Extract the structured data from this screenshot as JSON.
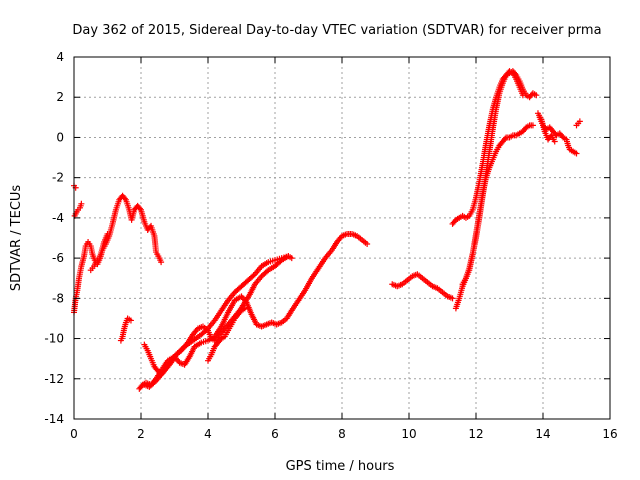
{
  "chart_data": {
    "type": "scatter",
    "title": "Day 362 of 2015, Sidereal Day-to-day VTEC variation (SDTVAR) for receiver prma",
    "xlabel": "GPS time / hours",
    "ylabel": "SDTVAR / TECUs",
    "xlim": [
      0,
      16
    ],
    "ylim": [
      -14,
      4
    ],
    "xticks": [
      0,
      2,
      4,
      6,
      8,
      10,
      12,
      14,
      16
    ],
    "yticks": [
      -14,
      -12,
      -10,
      -8,
      -6,
      -4,
      -2,
      0,
      2,
      4
    ],
    "grid": true,
    "legend": "none",
    "marker": "+",
    "series": [
      {
        "name": "prma",
        "color": "#ff0000",
        "segments": [
          [
            [
              0.0,
              -8.7
            ],
            [
              0.05,
              -8.0
            ],
            [
              0.1,
              -7.6
            ],
            [
              0.15,
              -7.0
            ],
            [
              0.22,
              -6.4
            ],
            [
              0.3,
              -5.9
            ],
            [
              0.35,
              -5.4
            ],
            [
              0.42,
              -5.2
            ],
            [
              0.5,
              -5.4
            ],
            [
              0.55,
              -5.8
            ],
            [
              0.62,
              -6.1
            ],
            [
              0.7,
              -6.3
            ],
            [
              0.78,
              -6.0
            ],
            [
              0.85,
              -5.6
            ],
            [
              0.95,
              -5.3
            ],
            [
              1.05,
              -4.9
            ],
            [
              1.15,
              -4.3
            ],
            [
              1.25,
              -3.6
            ],
            [
              1.35,
              -3.1
            ],
            [
              1.45,
              -2.9
            ],
            [
              1.55,
              -3.1
            ],
            [
              1.65,
              -3.6
            ],
            [
              1.72,
              -4.1
            ],
            [
              1.8,
              -3.6
            ],
            [
              1.9,
              -3.4
            ],
            [
              2.0,
              -3.6
            ],
            [
              2.1,
              -4.2
            ],
            [
              2.2,
              -4.6
            ],
            [
              2.3,
              -4.4
            ],
            [
              2.4,
              -4.9
            ],
            [
              2.45,
              -5.7
            ],
            [
              2.55,
              -6.0
            ],
            [
              2.6,
              -6.2
            ]
          ],
          [
            [
              0.0,
              -2.4
            ],
            [
              0.05,
              -2.5
            ]
          ],
          [
            [
              0.02,
              -3.9
            ],
            [
              0.08,
              -3.7
            ],
            [
              0.12,
              -3.6
            ],
            [
              0.18,
              -3.5
            ],
            [
              0.22,
              -3.3
            ]
          ],
          [
            [
              0.5,
              -6.6
            ],
            [
              0.55,
              -6.5
            ],
            [
              0.6,
              -6.4
            ],
            [
              0.65,
              -6.2
            ],
            [
              0.7,
              -6.1
            ],
            [
              0.75,
              -6.0
            ],
            [
              0.8,
              -5.8
            ],
            [
              0.85,
              -5.5
            ],
            [
              0.9,
              -5.2
            ],
            [
              0.95,
              -5.0
            ],
            [
              1.0,
              -4.8
            ]
          ],
          [
            [
              1.4,
              -10.1
            ],
            [
              1.45,
              -9.9
            ],
            [
              1.5,
              -9.5
            ],
            [
              1.55,
              -9.2
            ],
            [
              1.6,
              -9.0
            ],
            [
              1.7,
              -9.1
            ]
          ],
          [
            [
              1.95,
              -12.5
            ],
            [
              2.05,
              -12.3
            ],
            [
              2.15,
              -12.2
            ],
            [
              2.3,
              -12.3
            ],
            [
              2.45,
              -12.0
            ],
            [
              2.6,
              -11.6
            ],
            [
              2.8,
              -11.1
            ],
            [
              3.0,
              -10.9
            ],
            [
              3.15,
              -11.2
            ],
            [
              3.3,
              -11.3
            ],
            [
              3.45,
              -10.9
            ],
            [
              3.6,
              -10.4
            ],
            [
              3.8,
              -10.2
            ],
            [
              4.0,
              -10.1
            ],
            [
              4.2,
              -9.9
            ],
            [
              4.4,
              -9.4
            ],
            [
              4.6,
              -8.7
            ],
            [
              4.8,
              -8.1
            ],
            [
              5.0,
              -7.9
            ],
            [
              5.15,
              -8.2
            ],
            [
              5.3,
              -8.8
            ],
            [
              5.45,
              -9.3
            ],
            [
              5.6,
              -9.4
            ],
            [
              5.75,
              -9.3
            ],
            [
              5.9,
              -9.2
            ],
            [
              6.05,
              -9.3
            ],
            [
              6.2,
              -9.2
            ],
            [
              6.35,
              -9.0
            ],
            [
              6.5,
              -8.6
            ],
            [
              6.7,
              -8.1
            ],
            [
              6.9,
              -7.6
            ],
            [
              7.1,
              -7.0
            ],
            [
              7.3,
              -6.5
            ],
            [
              7.5,
              -6.0
            ],
            [
              7.7,
              -5.6
            ],
            [
              7.85,
              -5.2
            ],
            [
              8.0,
              -4.9
            ],
            [
              8.15,
              -4.8
            ],
            [
              8.3,
              -4.8
            ],
            [
              8.45,
              -4.9
            ],
            [
              8.6,
              -5.1
            ],
            [
              8.75,
              -5.3
            ]
          ],
          [
            [
              2.1,
              -10.3
            ],
            [
              2.2,
              -10.6
            ],
            [
              2.3,
              -11.0
            ],
            [
              2.4,
              -11.4
            ],
            [
              2.5,
              -11.6
            ],
            [
              2.6,
              -11.8
            ],
            [
              2.75,
              -11.5
            ],
            [
              2.9,
              -11.2
            ],
            [
              3.05,
              -10.8
            ],
            [
              3.2,
              -10.6
            ],
            [
              3.4,
              -10.2
            ],
            [
              3.55,
              -9.8
            ],
            [
              3.7,
              -9.5
            ],
            [
              3.85,
              -9.4
            ],
            [
              4.0,
              -9.6
            ],
            [
              4.1,
              -10.0
            ],
            [
              4.2,
              -10.1
            ],
            [
              4.35,
              -9.8
            ],
            [
              4.5,
              -9.5
            ],
            [
              4.65,
              -9.2
            ],
            [
              4.8,
              -8.9
            ],
            [
              4.95,
              -8.6
            ],
            [
              5.1,
              -8.2
            ],
            [
              5.25,
              -7.8
            ],
            [
              5.4,
              -7.3
            ],
            [
              5.6,
              -6.9
            ],
            [
              5.8,
              -6.6
            ],
            [
              6.0,
              -6.4
            ],
            [
              6.2,
              -6.1
            ],
            [
              6.4,
              -5.9
            ],
            [
              6.5,
              -6.0
            ]
          ],
          [
            [
              2.1,
              -12.3
            ],
            [
              2.25,
              -12.4
            ],
            [
              2.45,
              -12.1
            ],
            [
              2.65,
              -11.7
            ],
            [
              2.85,
              -11.2
            ],
            [
              3.05,
              -10.8
            ],
            [
              3.3,
              -10.4
            ],
            [
              3.55,
              -10.1
            ],
            [
              3.8,
              -9.8
            ],
            [
              4.0,
              -9.5
            ],
            [
              4.2,
              -9.1
            ],
            [
              4.4,
              -8.6
            ],
            [
              4.6,
              -8.1
            ],
            [
              4.8,
              -7.7
            ],
            [
              5.0,
              -7.4
            ],
            [
              5.2,
              -7.1
            ],
            [
              5.4,
              -6.8
            ],
            [
              5.6,
              -6.4
            ],
            [
              5.8,
              -6.2
            ],
            [
              6.0,
              -6.1
            ],
            [
              6.2,
              -6.0
            ],
            [
              6.4,
              -5.9
            ]
          ],
          [
            [
              4.0,
              -11.1
            ],
            [
              4.1,
              -10.8
            ],
            [
              4.2,
              -10.4
            ],
            [
              4.3,
              -10.2
            ],
            [
              4.4,
              -10.0
            ],
            [
              4.5,
              -9.9
            ],
            [
              4.6,
              -9.6
            ],
            [
              4.7,
              -9.3
            ],
            [
              4.8,
              -9.0
            ],
            [
              4.9,
              -8.8
            ],
            [
              5.0,
              -8.6
            ],
            [
              5.1,
              -8.5
            ]
          ],
          [
            [
              9.5,
              -7.3
            ],
            [
              9.65,
              -7.4
            ],
            [
              9.8,
              -7.3
            ],
            [
              9.95,
              -7.1
            ],
            [
              10.1,
              -6.9
            ],
            [
              10.25,
              -6.8
            ],
            [
              10.4,
              -7.0
            ],
            [
              10.55,
              -7.2
            ],
            [
              10.7,
              -7.4
            ],
            [
              10.85,
              -7.5
            ],
            [
              11.0,
              -7.7
            ],
            [
              11.15,
              -7.9
            ],
            [
              11.3,
              -8.0
            ]
          ],
          [
            [
              11.3,
              -4.3
            ],
            [
              11.4,
              -4.1
            ],
            [
              11.5,
              -4.0
            ],
            [
              11.6,
              -3.9
            ],
            [
              11.7,
              -4.0
            ],
            [
              11.8,
              -3.9
            ],
            [
              11.9,
              -3.6
            ],
            [
              12.0,
              -3.0
            ],
            [
              12.1,
              -2.2
            ],
            [
              12.2,
              -1.3
            ],
            [
              12.3,
              -0.3
            ],
            [
              12.4,
              0.6
            ],
            [
              12.5,
              1.4
            ],
            [
              12.6,
              2.0
            ],
            [
              12.7,
              2.5
            ],
            [
              12.8,
              2.9
            ],
            [
              12.9,
              3.1
            ],
            [
              13.0,
              3.2
            ],
            [
              13.1,
              3.3
            ],
            [
              13.2,
              3.1
            ],
            [
              13.3,
              2.8
            ],
            [
              13.4,
              2.4
            ],
            [
              13.5,
              2.1
            ],
            [
              13.6,
              2.0
            ],
            [
              13.7,
              2.2
            ],
            [
              13.8,
              2.1
            ]
          ],
          [
            [
              11.4,
              -8.5
            ],
            [
              11.5,
              -8.0
            ],
            [
              11.6,
              -7.4
            ],
            [
              11.7,
              -7.0
            ],
            [
              11.8,
              -6.5
            ],
            [
              11.9,
              -5.8
            ],
            [
              12.0,
              -5.0
            ],
            [
              12.1,
              -4.0
            ],
            [
              12.2,
              -2.9
            ],
            [
              12.3,
              -1.8
            ],
            [
              12.4,
              -0.7
            ],
            [
              12.5,
              0.4
            ],
            [
              12.6,
              1.4
            ],
            [
              12.7,
              2.2
            ],
            [
              12.8,
              2.7
            ],
            [
              12.9,
              3.1
            ],
            [
              13.0,
              3.3
            ],
            [
              13.1,
              3.2
            ],
            [
              13.2,
              2.9
            ],
            [
              13.3,
              2.5
            ],
            [
              13.4,
              2.1
            ]
          ],
          [
            [
              11.6,
              -7.3
            ],
            [
              11.7,
              -7.0
            ],
            [
              11.8,
              -6.6
            ],
            [
              11.9,
              -5.8
            ],
            [
              12.0,
              -4.8
            ],
            [
              12.1,
              -3.8
            ],
            [
              12.2,
              -2.8
            ],
            [
              12.3,
              -2.0
            ],
            [
              12.4,
              -1.5
            ],
            [
              12.5,
              -1.1
            ],
            [
              12.6,
              -0.7
            ],
            [
              12.7,
              -0.4
            ],
            [
              12.8,
              -0.2
            ],
            [
              12.9,
              0.0
            ],
            [
              13.0,
              0.0
            ],
            [
              13.1,
              0.1
            ],
            [
              13.2,
              0.1
            ],
            [
              13.3,
              0.2
            ],
            [
              13.4,
              0.3
            ],
            [
              13.5,
              0.5
            ],
            [
              13.6,
              0.6
            ],
            [
              13.7,
              0.6
            ]
          ],
          [
            [
              13.9,
              1.0
            ],
            [
              14.0,
              0.6
            ],
            [
              14.1,
              0.4
            ],
            [
              14.2,
              0.5
            ],
            [
              14.3,
              0.3
            ],
            [
              14.4,
              0.1
            ],
            [
              14.5,
              0.2
            ],
            [
              14.6,
              0.0
            ],
            [
              14.7,
              -0.1
            ],
            [
              14.75,
              -0.4
            ],
            [
              14.8,
              -0.6
            ],
            [
              14.9,
              -0.7
            ],
            [
              15.0,
              -0.8
            ]
          ],
          [
            [
              13.85,
              1.2
            ],
            [
              13.95,
              0.9
            ],
            [
              14.05,
              0.3
            ],
            [
              14.15,
              -0.1
            ],
            [
              14.25,
              0.1
            ],
            [
              14.35,
              -0.2
            ]
          ],
          [
            [
              15.0,
              0.6
            ],
            [
              15.05,
              0.7
            ],
            [
              15.1,
              0.8
            ]
          ]
        ]
      }
    ]
  }
}
